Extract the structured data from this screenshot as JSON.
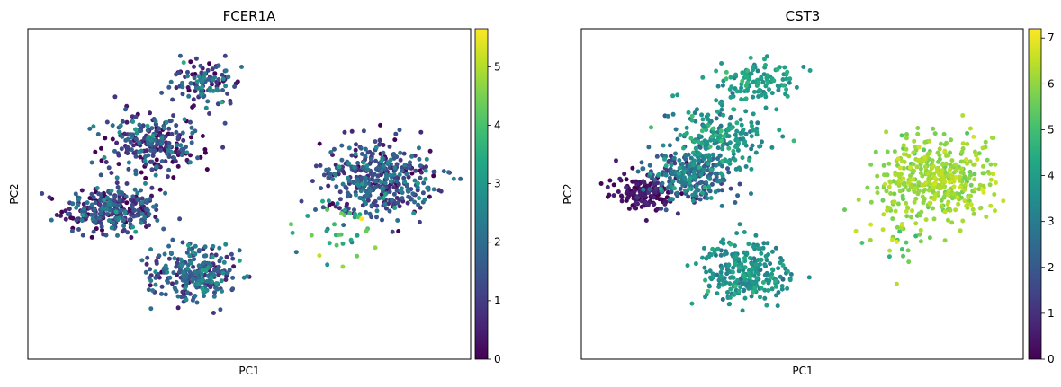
{
  "chart_data": [
    {
      "type": "scatter",
      "title": "FCER1A",
      "xlabel": "PC1",
      "ylabel": "PC2",
      "xlim": [
        0,
        100
      ],
      "ylim": [
        0,
        100
      ],
      "grid": false,
      "colormap": "viridis",
      "colorbar": {
        "min": 0,
        "max": 5.65,
        "ticks": [
          0,
          1,
          2,
          3,
          4,
          5
        ]
      },
      "clusters": [
        {
          "cx": 19,
          "cy": 45,
          "sx": 5.5,
          "sy": 3.5,
          "n": 320,
          "value_mean": 1.0,
          "value_sd": 0.9,
          "value_max": 3.5
        },
        {
          "cx": 28,
          "cy": 65,
          "sx": 5.5,
          "sy": 4.8,
          "n": 260,
          "value_mean": 1.0,
          "value_sd": 0.9,
          "value_max": 3.5
        },
        {
          "cx": 40,
          "cy": 84,
          "sx": 4.0,
          "sy": 3.5,
          "n": 120,
          "value_mean": 1.3,
          "value_sd": 1.0,
          "value_max": 3.5
        },
        {
          "cx": 38,
          "cy": 26,
          "sx": 5.0,
          "sy": 4.5,
          "n": 270,
          "value_mean": 1.7,
          "value_sd": 0.7,
          "value_max": 3.2
        },
        {
          "cx": 79,
          "cy": 55,
          "sx": 6.5,
          "sy": 5.5,
          "n": 420,
          "value_mean": 1.3,
          "value_sd": 0.8,
          "value_max": 3.3
        },
        {
          "cx": 71,
          "cy": 38,
          "sx": 5.0,
          "sy": 5.5,
          "n": 38,
          "value_mean": 3.6,
          "value_sd": 1.0,
          "value_max": 5.6
        }
      ]
    },
    {
      "type": "scatter",
      "title": "CST3",
      "xlabel": "PC1",
      "ylabel": "PC2",
      "xlim": [
        0,
        100
      ],
      "ylim": [
        0,
        100
      ],
      "grid": false,
      "colormap": "viridis",
      "colorbar": {
        "min": 0,
        "max": 7.2,
        "ticks": [
          0,
          1,
          2,
          3,
          4,
          5,
          6,
          7
        ]
      },
      "clusters": [
        {
          "cx": 14,
          "cy": 50,
          "sx": 3.2,
          "sy": 2.5,
          "n": 150,
          "value_mean": 0.15,
          "value_sd": 0.35,
          "value_max": 1.2
        },
        {
          "cx": 24,
          "cy": 55,
          "sx": 5.0,
          "sy": 4.0,
          "n": 260,
          "value_mean": 2.4,
          "value_sd": 1.0,
          "value_max": 4.5
        },
        {
          "cx": 31,
          "cy": 66,
          "sx": 5.5,
          "sy": 5.0,
          "n": 220,
          "value_mean": 3.6,
          "value_sd": 0.7,
          "value_max": 5.0
        },
        {
          "cx": 40,
          "cy": 84,
          "sx": 4.0,
          "sy": 3.5,
          "n": 120,
          "value_mean": 3.9,
          "value_sd": 0.5,
          "value_max": 5.0
        },
        {
          "cx": 37,
          "cy": 26,
          "sx": 5.0,
          "sy": 4.5,
          "n": 270,
          "value_mean": 3.6,
          "value_sd": 0.5,
          "value_max": 5.0
        },
        {
          "cx": 80,
          "cy": 55,
          "sx": 6.5,
          "sy": 6.0,
          "n": 420,
          "value_mean": 6.1,
          "value_sd": 0.3,
          "value_max": 7.2
        },
        {
          "cx": 72,
          "cy": 38,
          "sx": 6.0,
          "sy": 6.0,
          "n": 40,
          "value_mean": 5.8,
          "value_sd": 0.5,
          "value_max": 7.0
        }
      ]
    }
  ]
}
